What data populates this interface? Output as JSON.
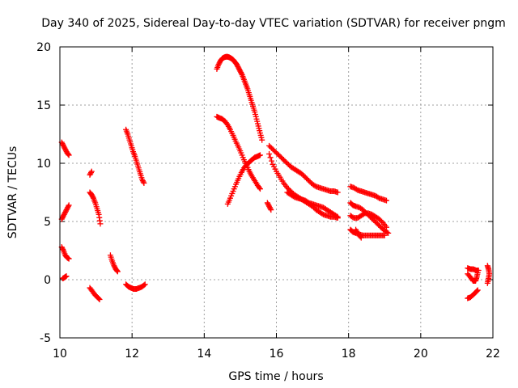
{
  "chart_data": {
    "type": "scatter",
    "title": "Day 340 of 2025, Sidereal Day-to-day VTEC variation (SDTVAR) for receiver pngm",
    "xlabel": "GPS time / hours",
    "ylabel": "SDTVAR / TECUs",
    "xlim": [
      10,
      22
    ],
    "ylim": [
      -5,
      20
    ],
    "xticks": [
      10,
      12,
      14,
      16,
      18,
      20,
      22
    ],
    "yticks": [
      -5,
      0,
      5,
      10,
      15,
      20
    ],
    "grid": true,
    "marker": "+",
    "color": "#ff0000",
    "series": [
      {
        "name": "s01",
        "points": [
          [
            10.05,
            11.8
          ],
          [
            10.1,
            11.5
          ],
          [
            10.15,
            11.2
          ],
          [
            10.2,
            10.9
          ],
          [
            10.25,
            10.7
          ]
        ]
      },
      {
        "name": "s02",
        "points": [
          [
            10.05,
            5.2
          ],
          [
            10.1,
            5.5
          ],
          [
            10.15,
            5.8
          ],
          [
            10.2,
            6.1
          ],
          [
            10.25,
            6.4
          ]
        ]
      },
      {
        "name": "s03",
        "points": [
          [
            10.05,
            2.8
          ],
          [
            10.1,
            2.5
          ],
          [
            10.15,
            2.1
          ],
          [
            10.2,
            1.9
          ],
          [
            10.25,
            1.8
          ]
        ]
      },
      {
        "name": "s04",
        "points": [
          [
            10.08,
            0.1
          ],
          [
            10.13,
            0.2
          ],
          [
            10.18,
            0.3
          ]
        ]
      },
      {
        "name": "s05",
        "points": [
          [
            10.83,
            9.0
          ],
          [
            10.88,
            9.3
          ]
        ]
      },
      {
        "name": "s06",
        "points": [
          [
            10.83,
            7.5
          ],
          [
            10.88,
            7.3
          ],
          [
            10.93,
            7.0
          ],
          [
            10.98,
            6.6
          ],
          [
            11.03,
            6.1
          ],
          [
            11.08,
            5.6
          ],
          [
            11.12,
            4.8
          ]
        ]
      },
      {
        "name": "s07",
        "points": [
          [
            10.83,
            -0.7
          ],
          [
            10.9,
            -1.0
          ],
          [
            10.97,
            -1.3
          ],
          [
            11.04,
            -1.5
          ],
          [
            11.1,
            -1.7
          ]
        ]
      },
      {
        "name": "s08",
        "points": [
          [
            11.4,
            2.1
          ],
          [
            11.45,
            1.6
          ],
          [
            11.5,
            1.2
          ],
          [
            11.55,
            0.9
          ],
          [
            11.6,
            0.7
          ]
        ]
      },
      {
        "name": "s09",
        "points": [
          [
            11.83,
            12.9
          ],
          [
            11.88,
            12.5
          ],
          [
            11.93,
            12.0
          ],
          [
            11.98,
            11.5
          ],
          [
            12.03,
            11.0
          ],
          [
            12.08,
            10.6
          ],
          [
            12.13,
            10.1
          ],
          [
            12.18,
            9.6
          ],
          [
            12.23,
            9.1
          ],
          [
            12.28,
            8.6
          ],
          [
            12.33,
            8.3
          ]
        ]
      },
      {
        "name": "s10",
        "points": [
          [
            11.83,
            -0.4
          ],
          [
            11.9,
            -0.6
          ],
          [
            11.97,
            -0.7
          ],
          [
            12.04,
            -0.8
          ],
          [
            12.12,
            -0.8
          ],
          [
            12.2,
            -0.7
          ],
          [
            12.28,
            -0.6
          ],
          [
            12.36,
            -0.4
          ]
        ]
      },
      {
        "name": "s11",
        "points": [
          [
            14.35,
            18.1
          ],
          [
            14.4,
            18.5
          ],
          [
            14.45,
            18.8
          ],
          [
            14.5,
            19.0
          ],
          [
            14.55,
            19.1
          ],
          [
            14.6,
            19.15
          ],
          [
            14.65,
            19.15
          ],
          [
            14.7,
            19.1
          ],
          [
            14.75,
            19.0
          ],
          [
            14.8,
            18.9
          ],
          [
            14.85,
            18.7
          ],
          [
            14.9,
            18.5
          ],
          [
            14.95,
            18.2
          ],
          [
            15.0,
            17.9
          ],
          [
            15.05,
            17.6
          ],
          [
            15.1,
            17.2
          ],
          [
            15.15,
            16.8
          ],
          [
            15.2,
            16.4
          ],
          [
            15.25,
            15.9
          ],
          [
            15.3,
            15.4
          ],
          [
            15.35,
            14.9
          ],
          [
            15.4,
            14.4
          ],
          [
            15.45,
            13.8
          ],
          [
            15.5,
            13.2
          ],
          [
            15.55,
            12.6
          ],
          [
            15.6,
            12.0
          ]
        ]
      },
      {
        "name": "s12",
        "points": [
          [
            14.35,
            14.0
          ],
          [
            14.42,
            13.9
          ],
          [
            14.5,
            13.8
          ],
          [
            14.58,
            13.6
          ],
          [
            14.65,
            13.3
          ],
          [
            14.72,
            12.9
          ],
          [
            14.8,
            12.4
          ],
          [
            14.87,
            11.9
          ],
          [
            14.95,
            11.4
          ],
          [
            15.02,
            10.9
          ],
          [
            15.1,
            10.3
          ],
          [
            15.18,
            9.8
          ],
          [
            15.25,
            9.3
          ],
          [
            15.32,
            8.9
          ],
          [
            15.4,
            8.5
          ],
          [
            15.48,
            8.1
          ],
          [
            15.55,
            7.8
          ]
        ]
      },
      {
        "name": "s13",
        "points": [
          [
            14.65,
            6.5
          ],
          [
            14.72,
            7.0
          ],
          [
            14.8,
            7.6
          ],
          [
            14.88,
            8.2
          ],
          [
            14.95,
            8.7
          ],
          [
            15.03,
            9.2
          ],
          [
            15.1,
            9.6
          ],
          [
            15.18,
            9.9
          ],
          [
            15.25,
            10.1
          ],
          [
            15.32,
            10.3
          ],
          [
            15.4,
            10.5
          ],
          [
            15.48,
            10.6
          ],
          [
            15.55,
            10.7
          ]
        ]
      },
      {
        "name": "s14",
        "points": [
          [
            15.75,
            6.6
          ],
          [
            15.8,
            6.3
          ],
          [
            15.85,
            6.0
          ]
        ]
      },
      {
        "name": "s15",
        "points": [
          [
            15.8,
            11.5
          ],
          [
            15.9,
            11.2
          ],
          [
            16.0,
            10.9
          ],
          [
            16.1,
            10.6
          ],
          [
            16.2,
            10.3
          ],
          [
            16.3,
            10.0
          ],
          [
            16.4,
            9.7
          ],
          [
            16.5,
            9.5
          ],
          [
            16.6,
            9.3
          ],
          [
            16.7,
            9.1
          ],
          [
            16.8,
            8.8
          ],
          [
            16.9,
            8.5
          ],
          [
            17.0,
            8.2
          ],
          [
            17.1,
            8.0
          ],
          [
            17.2,
            7.9
          ],
          [
            17.3,
            7.8
          ],
          [
            17.4,
            7.7
          ],
          [
            17.5,
            7.6
          ],
          [
            17.6,
            7.6
          ],
          [
            17.7,
            7.5
          ]
        ]
      },
      {
        "name": "s16",
        "points": [
          [
            15.8,
            10.8
          ],
          [
            15.9,
            9.9
          ],
          [
            16.0,
            9.3
          ],
          [
            16.1,
            8.8
          ],
          [
            16.2,
            8.3
          ],
          [
            16.3,
            7.9
          ],
          [
            16.4,
            7.6
          ],
          [
            16.5,
            7.3
          ],
          [
            16.6,
            7.1
          ],
          [
            16.7,
            6.9
          ],
          [
            16.8,
            6.7
          ],
          [
            16.9,
            6.5
          ],
          [
            17.0,
            6.3
          ],
          [
            17.1,
            6.0
          ],
          [
            17.2,
            5.8
          ],
          [
            17.3,
            5.6
          ],
          [
            17.4,
            5.5
          ],
          [
            17.5,
            5.4
          ],
          [
            17.6,
            5.4
          ],
          [
            17.7,
            5.3
          ]
        ]
      },
      {
        "name": "s17",
        "points": [
          [
            16.3,
            7.5
          ],
          [
            16.4,
            7.3
          ],
          [
            16.5,
            7.1
          ],
          [
            16.6,
            7.0
          ],
          [
            16.7,
            6.9
          ],
          [
            16.8,
            6.8
          ],
          [
            16.9,
            6.6
          ],
          [
            17.0,
            6.5
          ],
          [
            17.1,
            6.4
          ],
          [
            17.2,
            6.3
          ],
          [
            17.3,
            6.2
          ],
          [
            17.4,
            6.0
          ],
          [
            17.5,
            5.8
          ],
          [
            17.6,
            5.6
          ],
          [
            17.7,
            5.4
          ]
        ]
      },
      {
        "name": "s18",
        "points": [
          [
            18.05,
            8.0
          ],
          [
            18.15,
            7.9
          ],
          [
            18.25,
            7.7
          ],
          [
            18.35,
            7.6
          ],
          [
            18.45,
            7.5
          ],
          [
            18.55,
            7.4
          ],
          [
            18.65,
            7.3
          ],
          [
            18.75,
            7.2
          ],
          [
            18.85,
            7.0
          ],
          [
            18.95,
            6.9
          ],
          [
            19.05,
            6.8
          ]
        ]
      },
      {
        "name": "s19",
        "points": [
          [
            18.05,
            6.6
          ],
          [
            18.12,
            6.4
          ],
          [
            18.2,
            6.3
          ],
          [
            18.3,
            6.2
          ],
          [
            18.4,
            6.0
          ],
          [
            18.5,
            5.7
          ],
          [
            18.6,
            5.4
          ],
          [
            18.7,
            5.1
          ],
          [
            18.8,
            4.8
          ],
          [
            18.9,
            4.5
          ],
          [
            19.0,
            4.2
          ],
          [
            19.1,
            4.0
          ]
        ]
      },
      {
        "name": "s20",
        "points": [
          [
            18.05,
            4.3
          ],
          [
            18.12,
            4.1
          ],
          [
            18.2,
            4.0
          ],
          [
            18.3,
            3.9
          ],
          [
            18.4,
            3.8
          ],
          [
            18.5,
            3.8
          ],
          [
            18.6,
            3.8
          ],
          [
            18.7,
            3.8
          ],
          [
            18.8,
            3.8
          ],
          [
            18.9,
            3.8
          ],
          [
            19.0,
            3.8
          ]
        ]
      },
      {
        "name": "s21",
        "points": [
          [
            18.05,
            5.5
          ],
          [
            18.15,
            5.3
          ],
          [
            18.25,
            5.3
          ],
          [
            18.35,
            5.5
          ],
          [
            18.45,
            5.7
          ],
          [
            18.55,
            5.7
          ],
          [
            18.65,
            5.6
          ],
          [
            18.75,
            5.4
          ],
          [
            18.85,
            5.2
          ],
          [
            18.95,
            4.9
          ],
          [
            19.05,
            4.5
          ]
        ]
      },
      {
        "name": "s22",
        "points": [
          [
            18.2,
            4.3
          ],
          [
            18.27,
            3.9
          ],
          [
            18.35,
            3.6
          ]
        ]
      },
      {
        "name": "s23",
        "points": [
          [
            21.3,
            1.0
          ],
          [
            21.38,
            0.9
          ],
          [
            21.46,
            0.9
          ],
          [
            21.54,
            0.8
          ],
          [
            21.6,
            0.8
          ]
        ]
      },
      {
        "name": "s24",
        "points": [
          [
            21.3,
            0.5
          ],
          [
            21.38,
            0.2
          ],
          [
            21.45,
            -0.1
          ],
          [
            21.52,
            -0.1
          ],
          [
            21.55,
            0.2
          ],
          [
            21.58,
            0.6
          ]
        ]
      },
      {
        "name": "s25",
        "points": [
          [
            21.3,
            -1.6
          ],
          [
            21.38,
            -1.5
          ],
          [
            21.45,
            -1.3
          ],
          [
            21.52,
            -1.1
          ],
          [
            21.58,
            -0.9
          ]
        ]
      },
      {
        "name": "s26",
        "points": [
          [
            21.85,
            1.2
          ],
          [
            21.88,
            0.9
          ],
          [
            21.9,
            0.5
          ],
          [
            21.88,
            0.1
          ],
          [
            21.85,
            -0.3
          ]
        ]
      }
    ]
  }
}
